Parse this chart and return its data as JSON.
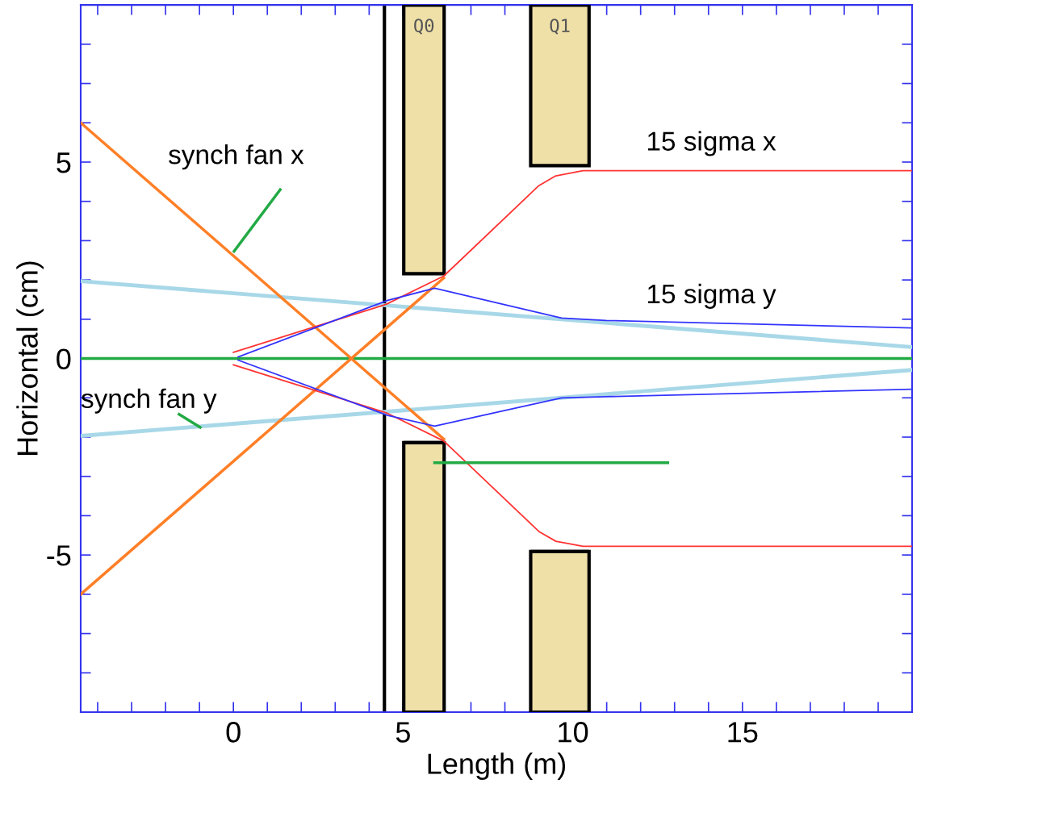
{
  "chart_data": {
    "type": "line",
    "xlabel": "Length (m)",
    "ylabel": "Horizontal (cm)",
    "xlim": [
      -4.5,
      20
    ],
    "ylim": [
      -9,
      9
    ],
    "xticks": [
      {
        "value": -4,
        "label": null
      },
      {
        "value": -3,
        "label": null
      },
      {
        "value": -2,
        "label": null
      },
      {
        "value": -1,
        "label": null
      },
      0,
      {
        "value": 1,
        "label": null
      },
      {
        "value": 2,
        "label": null
      },
      {
        "value": 3,
        "label": null
      },
      {
        "value": 4,
        "label": null
      },
      5,
      {
        "value": 6,
        "label": null
      },
      {
        "value": 7,
        "label": null
      },
      {
        "value": 8,
        "label": null
      },
      {
        "value": 9,
        "label": null
      },
      10,
      {
        "value": 11,
        "label": null
      },
      {
        "value": 12,
        "label": null
      },
      {
        "value": 13,
        "label": null
      },
      {
        "value": 14,
        "label": null
      },
      15,
      {
        "value": 16,
        "label": null
      },
      {
        "value": 17,
        "label": null
      },
      {
        "value": 18,
        "label": null
      },
      {
        "value": 19,
        "label": null
      }
    ],
    "yticks": [
      {
        "value": -8,
        "label": null
      },
      {
        "value": -7,
        "label": null
      },
      {
        "value": -6,
        "label": null
      },
      {
        "value": -5,
        "label": "-5"
      },
      {
        "value": -4,
        "label": null
      },
      {
        "value": -3,
        "label": null
      },
      {
        "value": -2,
        "label": null
      },
      {
        "value": -1,
        "label": null
      },
      0,
      {
        "value": 1,
        "label": null
      },
      {
        "value": 2,
        "label": null
      },
      {
        "value": 3,
        "label": null
      },
      {
        "value": 4,
        "label": null
      },
      5,
      {
        "value": 6,
        "label": null
      },
      {
        "value": 7,
        "label": null
      },
      {
        "value": 8,
        "label": null
      }
    ],
    "grid": false,
    "legend": false,
    "marker": "none",
    "line_style": "solid",
    "ref_lines": [
      {
        "axis": "x",
        "value": 4.45,
        "color": "#000000"
      }
    ],
    "series": [
      {
        "type": "bar",
        "color": "#efe0a8",
        "x": [
          5.615,
          9.62
        ],
        "xerrors": [
          0.595,
          0.86
        ],
        "values": [
          6.84,
          4.09
        ],
        "base": [
          2.16,
          4.91
        ],
        "value_labels": [
          "Q0",
          "Q1"
        ]
      },
      {
        "type": "bar",
        "color": "#efe0a8",
        "x": [
          5.615,
          9.62
        ],
        "xerrors": [
          0.595,
          0.86
        ],
        "values": [
          6.86,
          4.09
        ],
        "base": [
          -9,
          -9
        ]
      },
      {
        "color": "#a8d8e8",
        "x": [
          -4.5,
          20
        ],
        "values": [
          1.97,
          0.29
        ]
      },
      {
        "color": "#a8d8e8",
        "x": [
          -4.5,
          20
        ],
        "values": [
          -1.97,
          -0.29
        ]
      },
      {
        "color": "#22aa44",
        "x": [
          -4.5,
          20
        ],
        "values": [
          0,
          0
        ]
      },
      {
        "color": "#ff7f27",
        "x": [
          -4.5,
          6.2
        ],
        "values": [
          6,
          -2.05
        ]
      },
      {
        "color": "#ff7f27",
        "x": [
          -4.5,
          6.2
        ],
        "values": [
          -6,
          2.05
        ]
      },
      {
        "color": "#ff3333",
        "x": [
          0,
          4.5,
          6.2,
          9.0,
          9.5,
          10.3,
          20
        ],
        "values": [
          0.16,
          1.38,
          2.1,
          4.4,
          4.65,
          4.78,
          4.78
        ]
      },
      {
        "color": "#ff3333",
        "x": [
          0,
          4.5,
          6.2,
          9.0,
          9.5,
          10.3,
          20
        ],
        "values": [
          -0.16,
          -1.38,
          -2.1,
          -4.4,
          -4.65,
          -4.78,
          -4.78
        ]
      },
      {
        "color": "#3333ff",
        "x": [
          0.14,
          4.55,
          5.93,
          9.67,
          10.98,
          20
        ],
        "values": [
          0.04,
          1.48,
          1.79,
          1.03,
          0.97,
          0.78
        ]
      },
      {
        "color": "#3333ff",
        "x": [
          0.14,
          4.55,
          5.93,
          9.67,
          10.98,
          20
        ],
        "values": [
          -0.04,
          -1.45,
          -1.72,
          -1.0,
          -0.97,
          -0.78
        ]
      },
      {
        "color": "#22aa44",
        "x": [
          5.93,
          12.8
        ],
        "values": [
          -2.65,
          -2.65
        ]
      },
      {
        "color": "#22aa44",
        "x": [
          0.02,
          1.38
        ],
        "values": [
          2.73,
          4.3
        ]
      },
      {
        "color": "#22aa44",
        "x": [
          -1.6,
          -0.98
        ],
        "values": [
          -1.42,
          -1.75
        ]
      }
    ],
    "annotations": [
      "synch fan x",
      "15 sigma x",
      "15 sigma y",
      "synch fan y"
    ]
  }
}
